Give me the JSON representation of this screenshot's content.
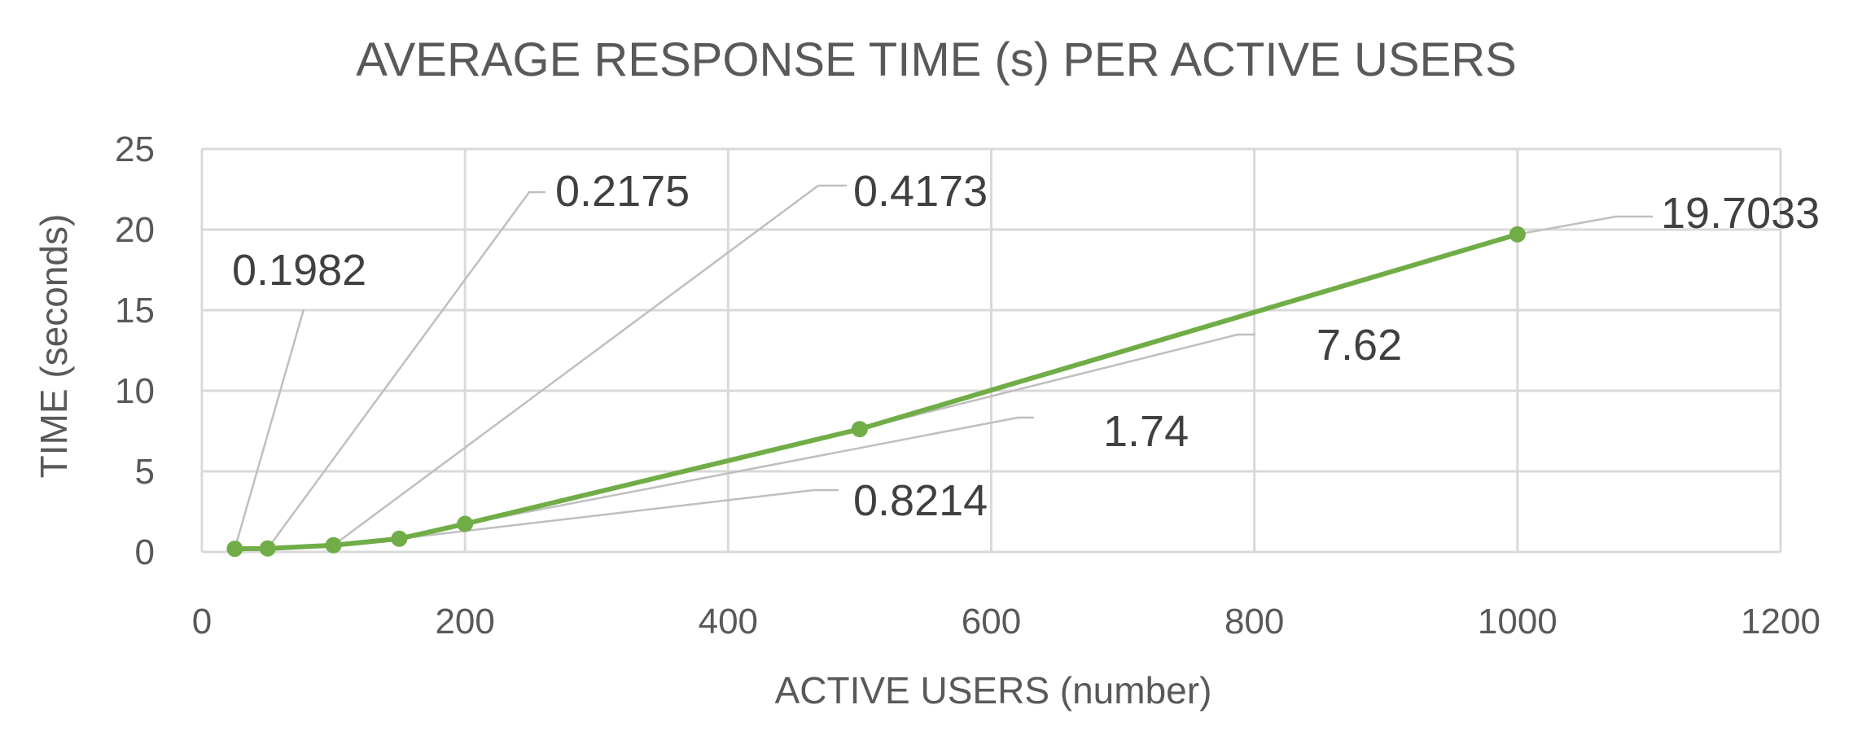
{
  "chart_data": {
    "type": "line",
    "title": "AVERAGE RESPONSE TIME (s) PER ACTIVE USERS",
    "xlabel": "ACTIVE USERS (number)",
    "ylabel": "TIME (seconds)",
    "xlim": [
      0,
      1200
    ],
    "ylim": [
      0,
      25
    ],
    "xticks": [
      0,
      200,
      400,
      600,
      800,
      1000,
      1200
    ],
    "yticks": [
      0,
      5,
      10,
      15,
      20,
      25
    ],
    "grid": true,
    "legend": "none",
    "line_color": "#70ad47",
    "series": [
      {
        "x": [
          25,
          50,
          100,
          150,
          200,
          500,
          1000
        ],
        "y": [
          0.1982,
          0.2175,
          0.4173,
          0.8214,
          1.74,
          7.62,
          19.7033
        ],
        "labels": [
          "0.1982",
          "0.2175",
          "0.4173",
          "0.8214",
          "1.74",
          "7.62",
          "19.7033"
        ]
      }
    ]
  }
}
